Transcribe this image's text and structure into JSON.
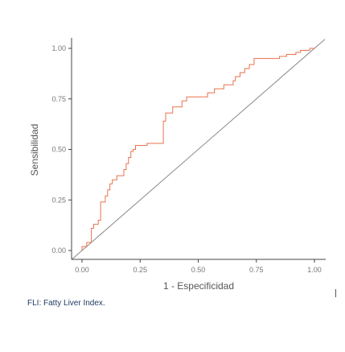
{
  "chart_data": {
    "type": "line",
    "xlabel": "1 - Especificidad",
    "ylabel": "Sensibilidad",
    "xlim": [
      0,
      1
    ],
    "ylim": [
      0,
      1
    ],
    "x_ticks": [
      "0.00",
      "0.25",
      "0.50",
      "0.75",
      "1.00"
    ],
    "y_ticks": [
      "0.00",
      "0.25",
      "0.50",
      "0.75",
      "1.00"
    ],
    "grid": false,
    "legend": "none",
    "series": [
      {
        "color": "#e8724e",
        "x": [
          0.0,
          0.0,
          0.02,
          0.02,
          0.04,
          0.04,
          0.05,
          0.05,
          0.07,
          0.07,
          0.08,
          0.08,
          0.1,
          0.1,
          0.11,
          0.11,
          0.12,
          0.12,
          0.13,
          0.13,
          0.15,
          0.15,
          0.18,
          0.18,
          0.19,
          0.19,
          0.2,
          0.2,
          0.21,
          0.21,
          0.22,
          0.22,
          0.23,
          0.23,
          0.28,
          0.28,
          0.35,
          0.35,
          0.36,
          0.36,
          0.39,
          0.39,
          0.43,
          0.43,
          0.45,
          0.45,
          0.54,
          0.54,
          0.57,
          0.57,
          0.61,
          0.61,
          0.65,
          0.65,
          0.66,
          0.66,
          0.68,
          0.68,
          0.7,
          0.7,
          0.72,
          0.72,
          0.74,
          0.74,
          0.85,
          0.85,
          0.88,
          0.88,
          0.92,
          0.92,
          0.94,
          0.94,
          0.98,
          0.98,
          1.0
        ],
        "y": [
          0.0,
          0.02,
          0.02,
          0.04,
          0.04,
          0.11,
          0.11,
          0.13,
          0.13,
          0.15,
          0.15,
          0.24,
          0.24,
          0.27,
          0.27,
          0.3,
          0.3,
          0.33,
          0.33,
          0.35,
          0.35,
          0.37,
          0.37,
          0.4,
          0.4,
          0.43,
          0.43,
          0.46,
          0.46,
          0.49,
          0.49,
          0.5,
          0.5,
          0.52,
          0.52,
          0.53,
          0.53,
          0.64,
          0.64,
          0.68,
          0.68,
          0.71,
          0.71,
          0.74,
          0.74,
          0.76,
          0.76,
          0.78,
          0.78,
          0.8,
          0.8,
          0.82,
          0.82,
          0.84,
          0.84,
          0.86,
          0.86,
          0.88,
          0.88,
          0.9,
          0.9,
          0.92,
          0.92,
          0.95,
          0.95,
          0.96,
          0.96,
          0.97,
          0.97,
          0.98,
          0.98,
          0.99,
          0.99,
          1.0,
          1.0
        ]
      }
    ],
    "reference_line": {
      "x": [
        0,
        1
      ],
      "y": [
        0,
        1
      ],
      "color": "#888888"
    }
  },
  "caption": "FLI: Fatty Liver Index."
}
